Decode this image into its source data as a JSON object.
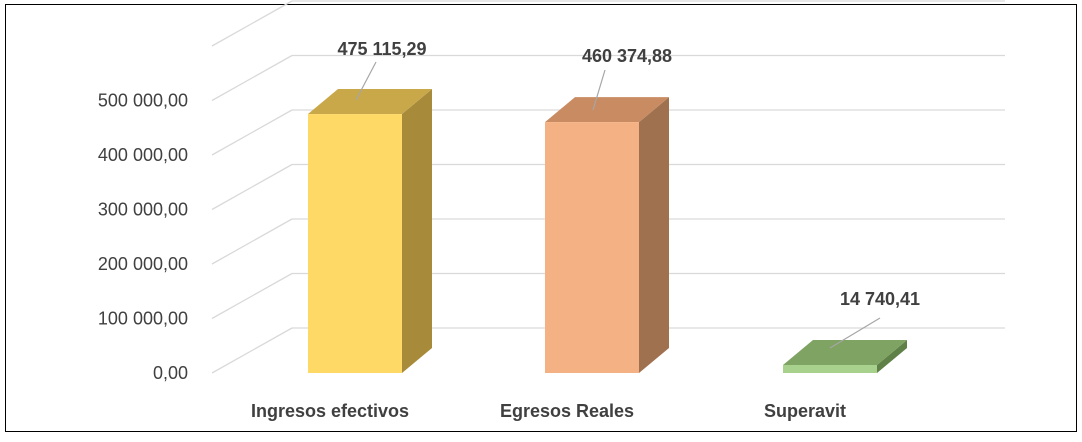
{
  "chart_data": {
    "type": "bar",
    "style": "3d-column",
    "categories": [
      "Ingresos efectivos",
      "Egresos Reales",
      "Superavit"
    ],
    "values": [
      475115.29,
      460374.88,
      14740.41
    ],
    "data_labels": [
      "475 115,29",
      "460 374,88",
      "14 740,41"
    ],
    "y_ticks": [
      0,
      100000,
      200000,
      300000,
      400000,
      500000
    ],
    "y_tick_labels": [
      "0,00",
      "100 000,00",
      "200 000,00",
      "300 000,00",
      "400 000,00",
      "500 000,00"
    ],
    "ylim": [
      0,
      600000
    ],
    "grid": true,
    "legend": "none",
    "colors": {
      "bars": [
        {
          "front": "#FFD966",
          "top": "#C9A84A",
          "side": "#A88B3A"
        },
        {
          "front": "#F4B183",
          "top": "#C98B62",
          "side": "#A0714F"
        },
        {
          "front": "#A9D18E",
          "top": "#7FA363",
          "side": "#5F8148"
        }
      ],
      "grid": "#D9D9D9",
      "text": "#404040",
      "leader": "#A6A6A6"
    }
  }
}
